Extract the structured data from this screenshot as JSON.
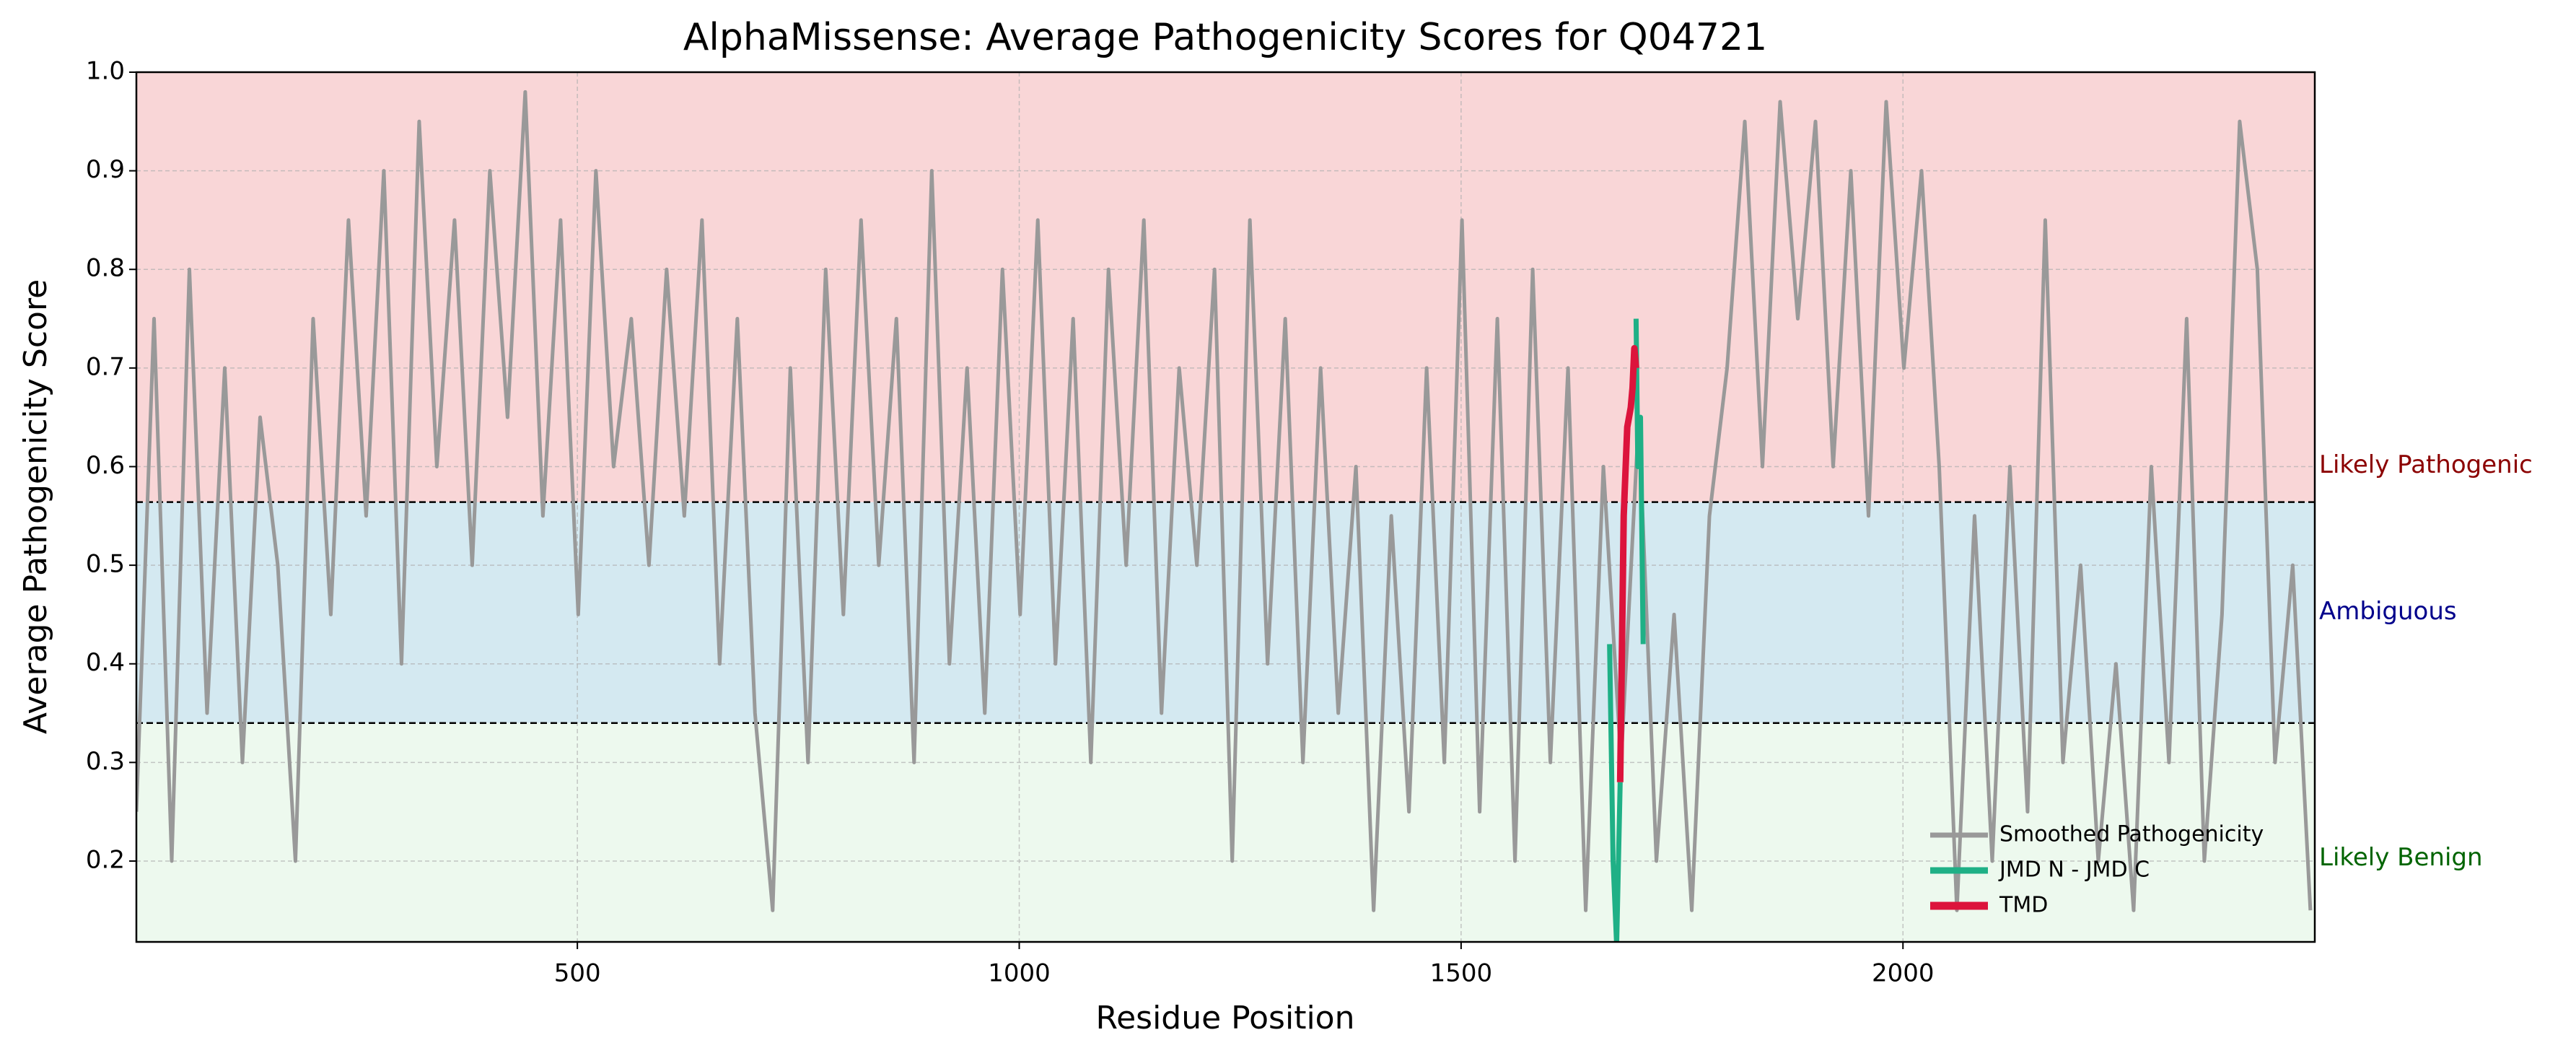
{
  "chart_data": {
    "type": "line",
    "title": "AlphaMissense: Average Pathogenicity Scores for Q04721",
    "x_label": "Residue Position",
    "y_label": "Average Pathogenicity Score",
    "xlim": [
      1,
      2466
    ],
    "ylim": [
      0.118,
      1.0
    ],
    "xticks": [
      500,
      1000,
      1500,
      2000
    ],
    "yticks": [
      0.2,
      0.3,
      0.4,
      0.5,
      0.6,
      0.7,
      0.8,
      0.9,
      {
        "value": 1.0,
        "label": "1.0"
      }
    ],
    "grid": true,
    "legend": "lower right",
    "thresholds": [
      0.34,
      0.564
    ],
    "regions": [
      {
        "label": "Likely Benign",
        "color": "#edf9ee",
        "label_color": "#006400"
      },
      {
        "label": "Ambiguous",
        "color": "#d4e9f1",
        "label_color": "#00008b"
      },
      {
        "label": "Likely Pathogenic",
        "color": "#f9d6d7",
        "label_color": "#8b0000"
      }
    ],
    "series": [
      {
        "name": "Smoothed Pathogenicity",
        "color": "#999999",
        "width": 5,
        "x": [
          1,
          21,
          41,
          61,
          81,
          101,
          121,
          141,
          161,
          181,
          201,
          221,
          241,
          261,
          281,
          301,
          321,
          341,
          361,
          381,
          401,
          421,
          441,
          461,
          481,
          501,
          521,
          541,
          561,
          581,
          601,
          621,
          641,
          661,
          681,
          701,
          721,
          741,
          761,
          781,
          801,
          821,
          841,
          861,
          881,
          901,
          921,
          941,
          961,
          981,
          1001,
          1021,
          1041,
          1061,
          1081,
          1101,
          1121,
          1141,
          1161,
          1181,
          1201,
          1221,
          1241,
          1261,
          1281,
          1301,
          1321,
          1341,
          1361,
          1381,
          1401,
          1421,
          1441,
          1461,
          1481,
          1501,
          1521,
          1541,
          1561,
          1581,
          1601,
          1621,
          1641,
          1661,
          1681,
          1701,
          1721,
          1741,
          1761,
          1781,
          1801,
          1821,
          1841,
          1861,
          1881,
          1901,
          1921,
          1941,
          1961,
          1981,
          2001,
          2021,
          2041,
          2061,
          2081,
          2101,
          2121,
          2141,
          2161,
          2181,
          2201,
          2221,
          2241,
          2261,
          2281,
          2301,
          2321,
          2341,
          2361,
          2381,
          2401,
          2421,
          2441,
          2461
        ],
        "values": [
          0.25,
          0.75,
          0.2,
          0.8,
          0.35,
          0.7,
          0.3,
          0.65,
          0.5,
          0.2,
          0.75,
          0.45,
          0.85,
          0.55,
          0.9,
          0.4,
          0.95,
          0.6,
          0.85,
          0.5,
          0.9,
          0.65,
          0.98,
          0.55,
          0.85,
          0.45,
          0.9,
          0.6,
          0.75,
          0.5,
          0.8,
          0.55,
          0.85,
          0.4,
          0.75,
          0.35,
          0.15,
          0.7,
          0.3,
          0.8,
          0.45,
          0.85,
          0.5,
          0.75,
          0.3,
          0.9,
          0.4,
          0.7,
          0.35,
          0.8,
          0.45,
          0.85,
          0.4,
          0.75,
          0.3,
          0.8,
          0.5,
          0.85,
          0.35,
          0.7,
          0.5,
          0.8,
          0.2,
          0.85,
          0.4,
          0.75,
          0.3,
          0.7,
          0.35,
          0.6,
          0.15,
          0.55,
          0.25,
          0.7,
          0.3,
          0.85,
          0.25,
          0.75,
          0.2,
          0.8,
          0.3,
          0.7,
          0.15,
          0.6,
          0.3,
          0.65,
          0.2,
          0.45,
          0.15,
          0.55,
          0.7,
          0.95,
          0.6,
          0.97,
          0.75,
          0.95,
          0.6,
          0.9,
          0.55,
          0.97,
          0.7,
          0.9,
          0.6,
          0.15,
          0.55,
          0.2,
          0.6,
          0.25,
          0.85,
          0.3,
          0.5,
          0.2,
          0.4,
          0.15,
          0.6,
          0.3,
          0.75,
          0.2,
          0.45,
          0.95,
          0.8,
          0.3,
          0.5,
          0.15
        ]
      },
      {
        "name": "JMD N - JMD C",
        "color": "#1fb086",
        "width": 7,
        "x": [
          1668,
          1672,
          1676,
          1680,
          1690,
          1698,
          1700,
          1703,
          1706
        ],
        "values": [
          0.42,
          0.2,
          0.115,
          0.28,
          null,
          0.75,
          0.6,
          0.65,
          0.42
        ]
      },
      {
        "name": "TMD",
        "color": "#dc143c",
        "width": 9,
        "x": [
          1680,
          1684,
          1688,
          1692,
          1694,
          1696,
          1698
        ],
        "values": [
          0.28,
          0.55,
          0.64,
          0.66,
          0.68,
          0.72,
          0.7
        ]
      }
    ]
  }
}
